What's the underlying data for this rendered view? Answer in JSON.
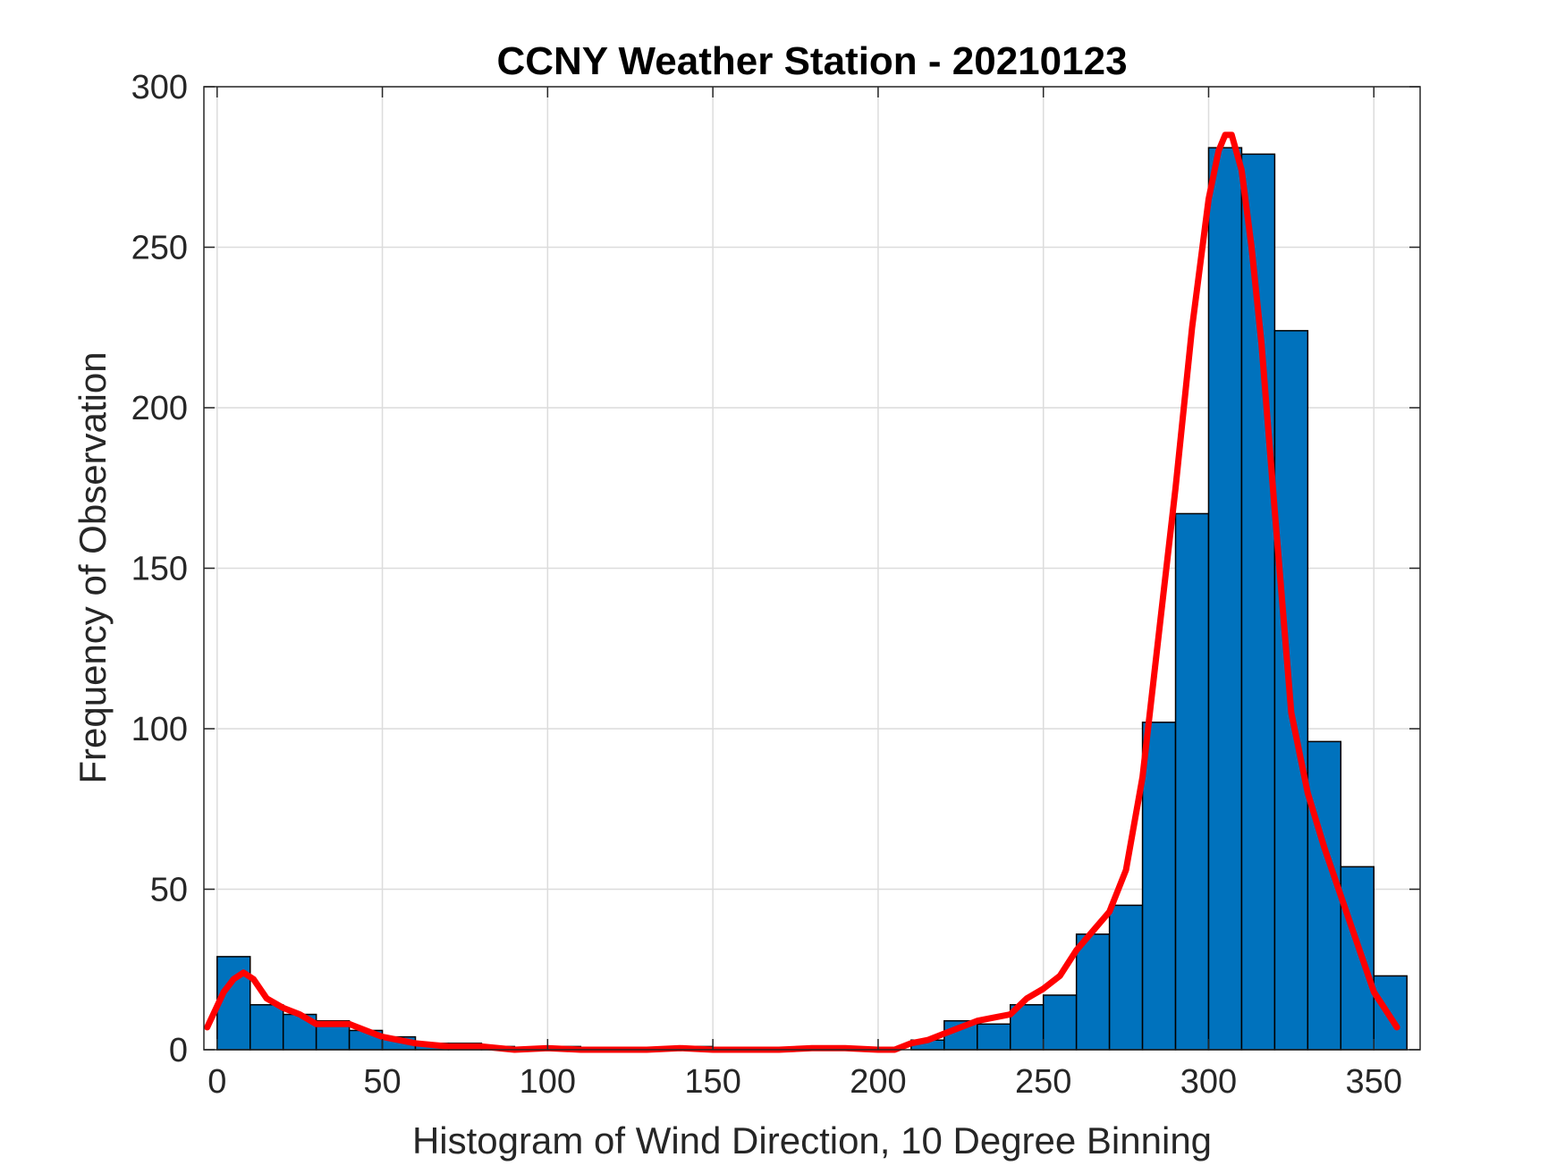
{
  "colors": {
    "bar_fill": "#0072BD",
    "bar_edge": "#000000",
    "fit_line": "#FF0000",
    "grid": "#DCDCDC",
    "axis": "#262626"
  },
  "chart_data": {
    "type": "bar",
    "title": "CCNY Weather Station - 20210123",
    "xlabel": "Histogram of Wind Direction, 10 Degree Binning",
    "ylabel": "Frequency of Observation",
    "xlim": [
      -4,
      364
    ],
    "ylim": [
      0,
      300
    ],
    "grid": true,
    "bin_width": 10,
    "xticks": [
      0,
      50,
      100,
      150,
      200,
      250,
      300,
      350
    ],
    "yticks": [
      0,
      50,
      100,
      150,
      200,
      250,
      300
    ],
    "bins": [
      {
        "start": 0,
        "value": 29
      },
      {
        "start": 10,
        "value": 14
      },
      {
        "start": 20,
        "value": 11
      },
      {
        "start": 30,
        "value": 9
      },
      {
        "start": 40,
        "value": 6
      },
      {
        "start": 50,
        "value": 4
      },
      {
        "start": 60,
        "value": 2
      },
      {
        "start": 70,
        "value": 2
      },
      {
        "start": 80,
        "value": 1
      },
      {
        "start": 90,
        "value": 0
      },
      {
        "start": 100,
        "value": 1
      },
      {
        "start": 110,
        "value": 0
      },
      {
        "start": 120,
        "value": 0
      },
      {
        "start": 130,
        "value": 0
      },
      {
        "start": 140,
        "value": 1
      },
      {
        "start": 150,
        "value": 0
      },
      {
        "start": 160,
        "value": 0
      },
      {
        "start": 170,
        "value": 0
      },
      {
        "start": 180,
        "value": 1
      },
      {
        "start": 190,
        "value": 0
      },
      {
        "start": 200,
        "value": 0
      },
      {
        "start": 210,
        "value": 3
      },
      {
        "start": 220,
        "value": 9
      },
      {
        "start": 230,
        "value": 8
      },
      {
        "start": 240,
        "value": 14
      },
      {
        "start": 250,
        "value": 17
      },
      {
        "start": 260,
        "value": 36
      },
      {
        "start": 270,
        "value": 45
      },
      {
        "start": 280,
        "value": 102
      },
      {
        "start": 290,
        "value": 167
      },
      {
        "start": 300,
        "value": 281
      },
      {
        "start": 310,
        "value": 279
      },
      {
        "start": 320,
        "value": 224
      },
      {
        "start": 330,
        "value": 96
      },
      {
        "start": 340,
        "value": 57
      },
      {
        "start": 350,
        "value": 23
      }
    ],
    "fit_curve": {
      "x": [
        -3,
        2,
        5,
        8,
        11,
        15,
        20,
        25,
        30,
        35,
        40,
        45,
        50,
        55,
        60,
        70,
        80,
        90,
        100,
        110,
        120,
        130,
        140,
        150,
        160,
        170,
        180,
        190,
        200,
        205,
        210,
        215,
        220,
        225,
        230,
        235,
        240,
        245,
        250,
        255,
        260,
        265,
        270,
        275,
        280,
        285,
        290,
        295,
        300,
        303,
        305,
        307,
        310,
        313,
        316,
        320,
        325,
        330,
        335,
        340,
        345,
        350,
        357
      ],
      "y": [
        7,
        18,
        22,
        24,
        22,
        16,
        13,
        11,
        8,
        8,
        8,
        6,
        4,
        3,
        2,
        1,
        1,
        0,
        0.5,
        0,
        0,
        0,
        0.5,
        0,
        0,
        0,
        0.5,
        0.5,
        0,
        0,
        2,
        3,
        5,
        7,
        9,
        10,
        11,
        16,
        19,
        23,
        31,
        37,
        43,
        56,
        85,
        130,
        175,
        225,
        265,
        280,
        285,
        285,
        274,
        250,
        220,
        168,
        105,
        80,
        63,
        48,
        33,
        18,
        7
      ]
    }
  }
}
